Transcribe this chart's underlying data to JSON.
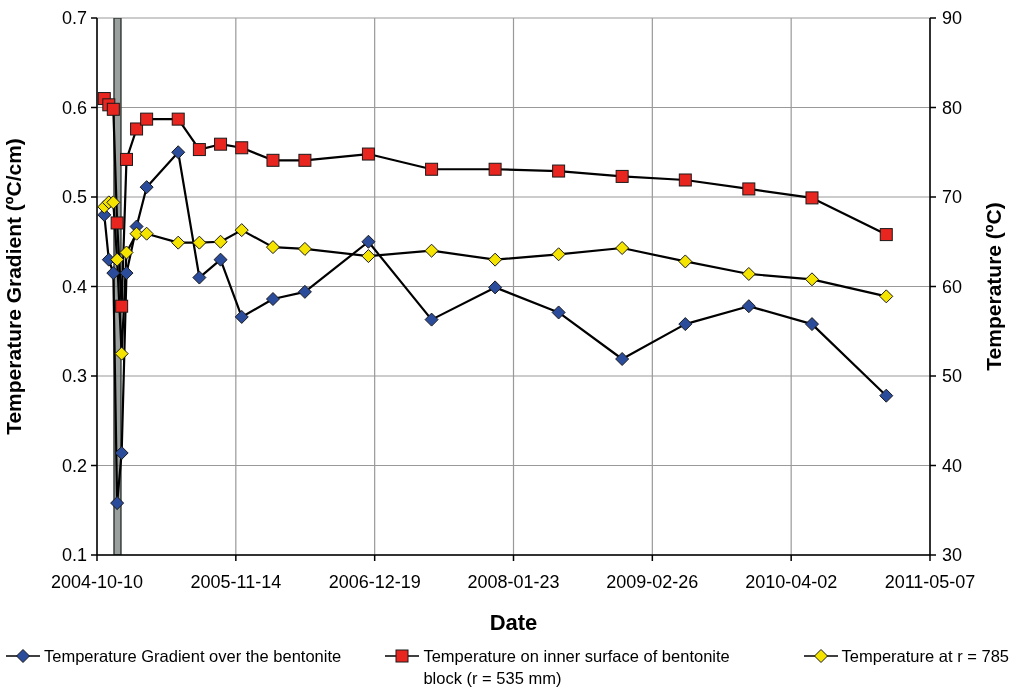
{
  "chart_data": {
    "type": "line",
    "xlabel": "Date",
    "ylabel": "Temperature Gradient (ºC/cm)",
    "y2label": "Temperature (ºC)",
    "x": [
      "2004-10-31",
      "2004-11-13",
      "2004-11-26",
      "2004-12-07",
      "2004-12-20",
      "2005-01-03",
      "2005-02-01",
      "2005-03-02",
      "2005-06-01",
      "2005-08-01",
      "2005-10-01",
      "2005-12-01",
      "2006-03-01",
      "2006-06-01",
      "2006-12-01",
      "2007-06-01",
      "2007-12-01",
      "2008-06-01",
      "2008-12-01",
      "2009-06-01",
      "2009-12-01",
      "2010-06-01",
      "2011-01-01"
    ],
    "series": [
      {
        "name": "Temperature Gradient over the bentonite",
        "color": "#2b4c9b",
        "marker": "diamond",
        "values": [
          0.48,
          0.43,
          0.415,
          0.158,
          0.214,
          0.415,
          0.467,
          0.511,
          0.55,
          0.41,
          0.43,
          0.366,
          0.386,
          0.394,
          0.45,
          0.363,
          0.399,
          0.371,
          0.319,
          0.358,
          0.378,
          0.358,
          0.278
        ]
      },
      {
        "name": "Temperature on inner surface of bentonite block (r = 535 mm)",
        "color": "#e8261f",
        "marker": "square",
        "axis": "y2",
        "values": [
          81.0,
          80.3,
          79.8,
          67.1,
          57.8,
          74.2,
          77.6,
          78.7,
          78.7,
          75.3,
          75.9,
          75.5,
          74.1,
          74.1,
          74.8,
          73.1,
          73.1,
          72.9,
          72.3,
          71.9,
          70.9,
          69.9,
          65.8
        ]
      },
      {
        "name": "Temperature at r = 785",
        "color": "#f5e400",
        "marker": "diamond",
        "axis": "y2",
        "values": [
          68.9,
          69.4,
          69.4,
          63.0,
          52.5,
          63.8,
          65.9,
          65.9,
          64.9,
          64.9,
          65.0,
          66.3,
          64.4,
          64.2,
          63.4,
          64.0,
          63.0,
          63.6,
          64.3,
          62.8,
          61.4,
          60.8,
          58.9
        ]
      }
    ],
    "xlim": [
      "2004-10-10",
      "2011-05-07"
    ],
    "xticks": [
      "2004-10-10",
      "2005-11-14",
      "2006-12-19",
      "2008-01-23",
      "2009-02-26",
      "2010-04-02",
      "2011-05-07"
    ],
    "ylim": [
      0.1,
      0.7
    ],
    "yticks": [
      0.1,
      0.2,
      0.3,
      0.4,
      0.5,
      0.6,
      0.7
    ],
    "y2lim": [
      30,
      90
    ],
    "y2ticks": [
      30,
      40,
      50,
      60,
      70,
      80,
      90
    ],
    "bands": [
      {
        "axis": "x",
        "from": "2004-11-28",
        "to": "2004-12-18",
        "color": "#6e7873"
      }
    ],
    "grid": true,
    "legend": "bottom",
    "line_style": "solid"
  }
}
